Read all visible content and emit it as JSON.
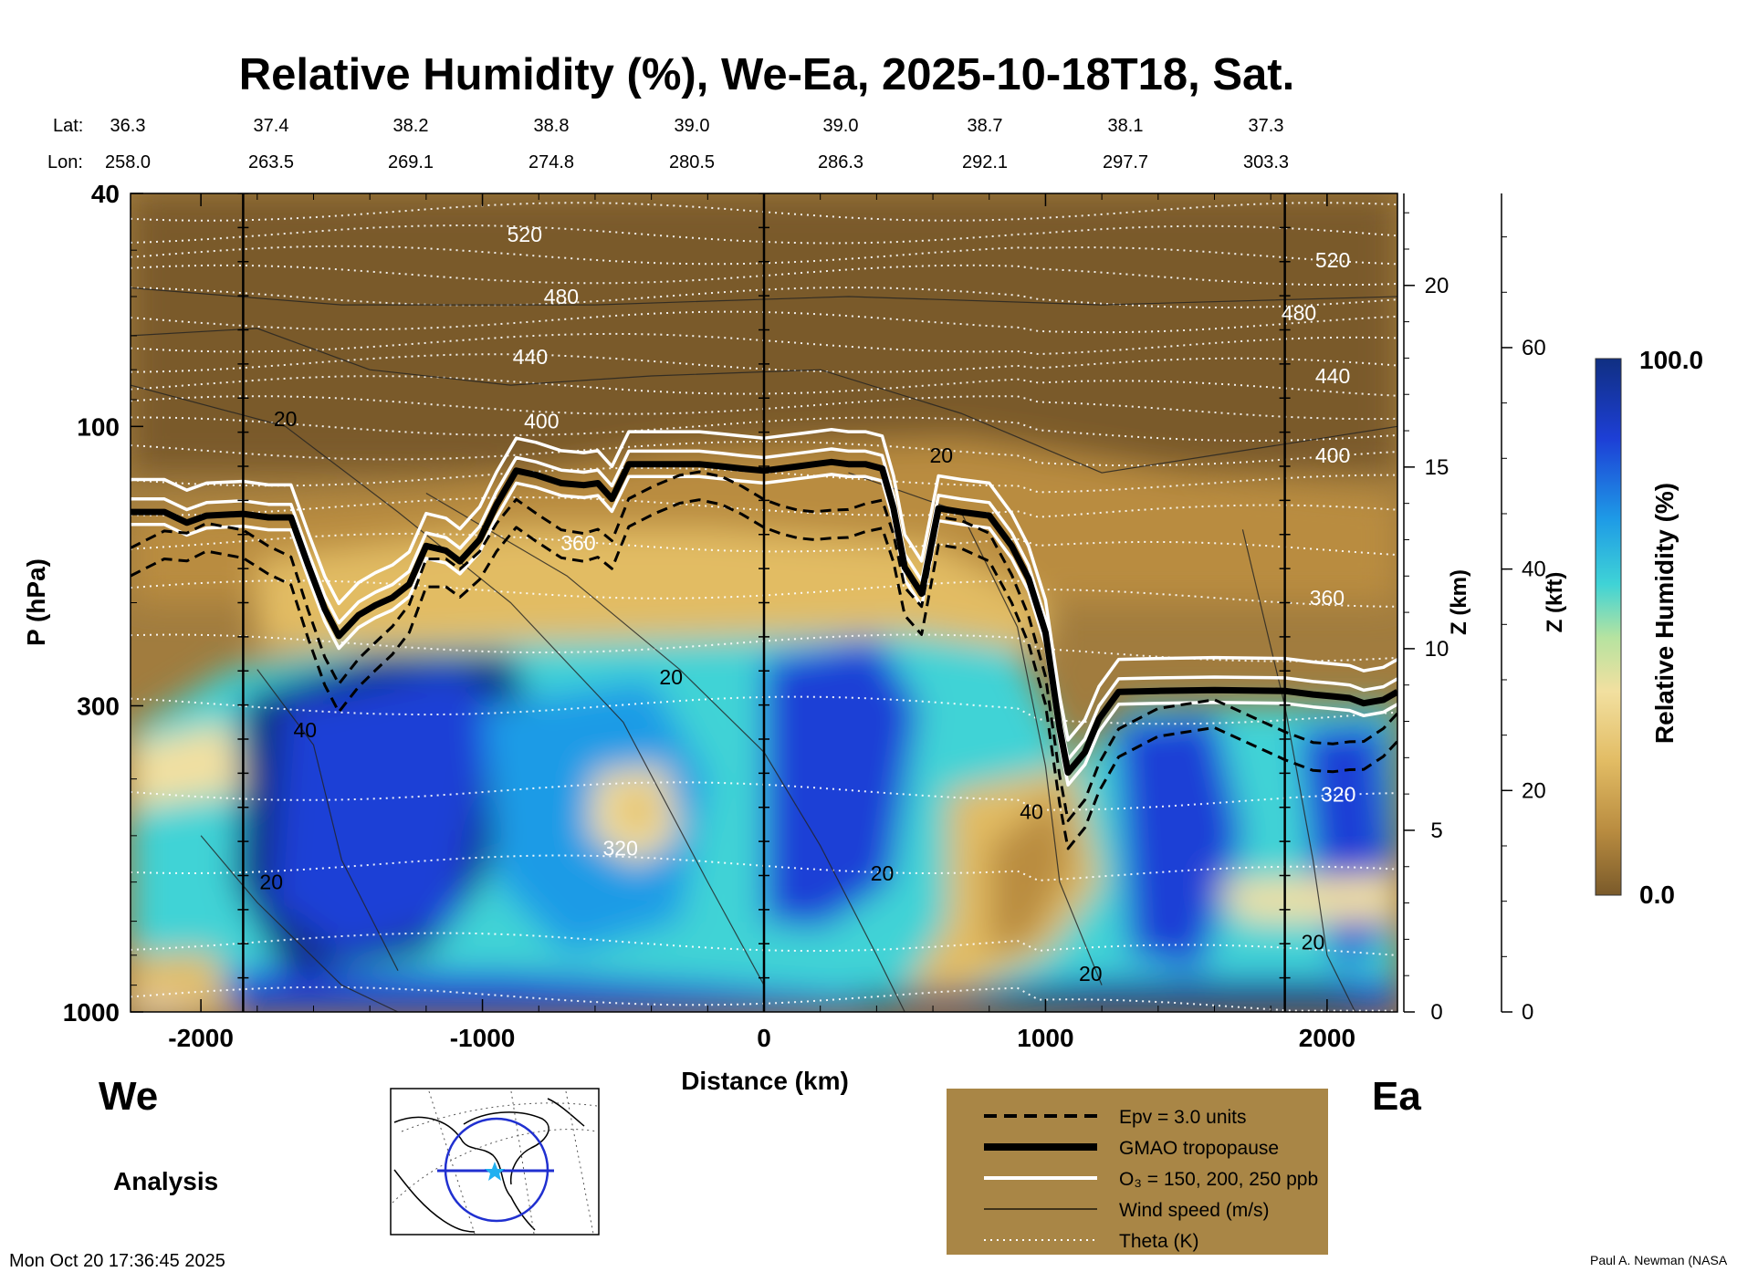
{
  "chart_data": {
    "type": "heatmap",
    "title": "Relative Humidity (%), We-Ea, 2025-10-18T18, Sat.",
    "xlabel": "Distance (km)",
    "ylabel": "P (hPa)",
    "y2label": "Z (km)",
    "y3label": "Z (kft)",
    "colorbar_label": "Relative Humidity (%)",
    "colorbar_max": "100.0",
    "colorbar_min": "0.0",
    "colorbar_range": [
      0,
      100
    ],
    "colormap_colors": [
      "#7a5a2a",
      "#b98c40",
      "#e2bc64",
      "#f2e0a0",
      "#b6e3a0",
      "#3fd3d6",
      "#1e9be6",
      "#1d3fd6",
      "#102f82"
    ],
    "xlim": [
      -2250,
      2250
    ],
    "ylim": [
      1000,
      40
    ],
    "y_scale": "log",
    "xticks": [
      "-2000",
      "-1000",
      "0",
      "1000",
      "2000"
    ],
    "xtick_values": [
      -2000,
      -1000,
      0,
      1000,
      2000
    ],
    "yticks": [
      "40",
      "100",
      "300",
      "1000"
    ],
    "ytick_values": [
      40,
      100,
      300,
      1000
    ],
    "zkm_ticks": [
      "0",
      "5",
      "10",
      "15",
      "20"
    ],
    "zkm_values": [
      0,
      5,
      10,
      15,
      20
    ],
    "zkft_ticks": [
      "0",
      "20",
      "40",
      "60"
    ],
    "zkft_values": [
      0,
      20,
      40,
      60
    ],
    "lat_label": "Lat:",
    "lon_label": "Lon:",
    "lat_values": [
      "36.3",
      "37.4",
      "38.2",
      "38.8",
      "39.0",
      "39.0",
      "38.7",
      "38.1",
      "37.3"
    ],
    "lon_values": [
      "258.0",
      "263.5",
      "269.1",
      "274.8",
      "280.5",
      "286.3",
      "292.1",
      "297.7",
      "303.3"
    ],
    "vertical_lines_km": [
      -1850,
      0,
      1850
    ],
    "left_end_label": "We",
    "right_end_label": "Ea",
    "product_label": "Analysis",
    "timestamp": "Mon Oct 20 17:36:45 2025",
    "credit": "Paul A. Newman (NASA",
    "legend": [
      {
        "label": "Epv = 3.0 units",
        "style": "dashed"
      },
      {
        "label": "GMAO tropopause",
        "style": "thick"
      },
      {
        "label": "O₃ = 150, 200, 250 ppb",
        "style": "white"
      },
      {
        "label": "Wind speed (m/s)",
        "style": "thin"
      },
      {
        "label": "Theta (K)",
        "style": "dotted"
      }
    ],
    "theta_labels": [
      {
        "text": "520",
        "x": -850,
        "p": 47
      },
      {
        "text": "520",
        "x": 2020,
        "p": 52
      },
      {
        "text": "480",
        "x": -720,
        "p": 60
      },
      {
        "text": "480",
        "x": 1900,
        "p": 64
      },
      {
        "text": "440",
        "x": -830,
        "p": 76
      },
      {
        "text": "440",
        "x": 2020,
        "p": 82
      },
      {
        "text": "400",
        "x": -790,
        "p": 98
      },
      {
        "text": "400",
        "x": 2020,
        "p": 112
      },
      {
        "text": "360",
        "x": -660,
        "p": 158
      },
      {
        "text": "360",
        "x": 2000,
        "p": 196
      },
      {
        "text": "320",
        "x": -510,
        "p": 525
      },
      {
        "text": "320",
        "x": 2040,
        "p": 425
      }
    ],
    "wind_labels": [
      {
        "text": "20",
        "x": -1700,
        "p": 97
      },
      {
        "text": "20",
        "x": 630,
        "p": 112
      },
      {
        "text": "20",
        "x": -330,
        "p": 268
      },
      {
        "text": "40",
        "x": -1630,
        "p": 330
      },
      {
        "text": "40",
        "x": 950,
        "p": 455
      },
      {
        "text": "20",
        "x": -1750,
        "p": 600
      },
      {
        "text": "20",
        "x": 420,
        "p": 580
      },
      {
        "text": "20",
        "x": 1160,
        "p": 860
      },
      {
        "text": "20",
        "x": 1950,
        "p": 760
      }
    ],
    "tropopause": {
      "x": [
        -2250,
        -2130,
        -2050,
        -1980,
        -1850,
        -1760,
        -1680,
        -1620,
        -1560,
        -1510,
        -1440,
        -1380,
        -1320,
        -1260,
        -1200,
        -1130,
        -1080,
        -1010,
        -950,
        -880,
        -810,
        -720,
        -640,
        -590,
        -540,
        -480,
        -390,
        -300,
        -230,
        -150,
        -80,
        0,
        60,
        120,
        180,
        240,
        300,
        360,
        420,
        460,
        500,
        560,
        620,
        700,
        800,
        880,
        940,
        1000,
        1050,
        1080,
        1140,
        1190,
        1260,
        1400,
        1600,
        1850,
        1950,
        2020,
        2080,
        2130,
        2200,
        2250
      ],
      "p": [
        140,
        140,
        146,
        142,
        141,
        143,
        143,
        172,
        205,
        228,
        210,
        202,
        196,
        186,
        160,
        163,
        170,
        156,
        136,
        119,
        121,
        125,
        126,
        125,
        133,
        116,
        116,
        116,
        116,
        117,
        118,
        119,
        118,
        117,
        116,
        115,
        116,
        116,
        118,
        138,
        174,
        193,
        138,
        140,
        142,
        160,
        182,
        225,
        328,
        390,
        360,
        316,
        284,
        283,
        282,
        283,
        287,
        289,
        291,
        297,
        293,
        284
      ]
    }
  }
}
